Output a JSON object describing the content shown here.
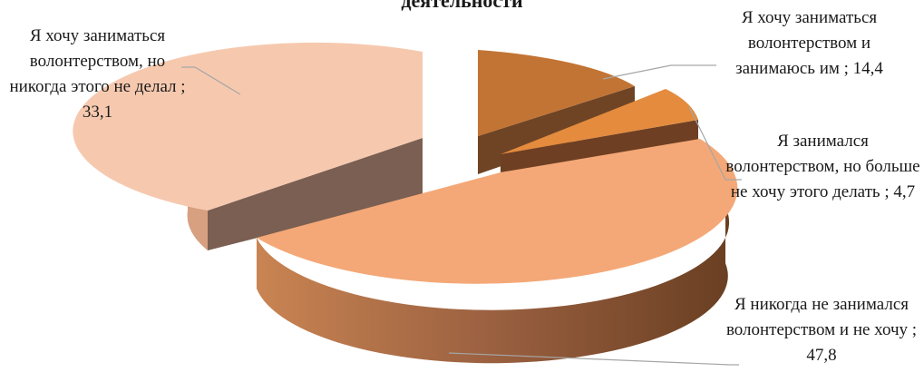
{
  "chart_data": {
    "type": "pie",
    "title": "деятельности",
    "slices": [
      {
        "label": "Я хочу заниматься волонтерством и занимаюсь им ; 14,4",
        "value": 14.4,
        "color": "#c07030"
      },
      {
        "label": "Я занимался волонтерством, но больше не хочу этого делать ; 4,7",
        "value": 4.7,
        "color": "#e48a3e"
      },
      {
        "label": "Я никогда не занимался волонтерством и не хочу ; 47,8",
        "value": 47.8,
        "color": "#f3a878"
      },
      {
        "label": "Я хочу заниматься волонтерством, но никогда этого не делал ; 33,1",
        "value": 33.1,
        "color": "#f5c8ae"
      }
    ]
  }
}
